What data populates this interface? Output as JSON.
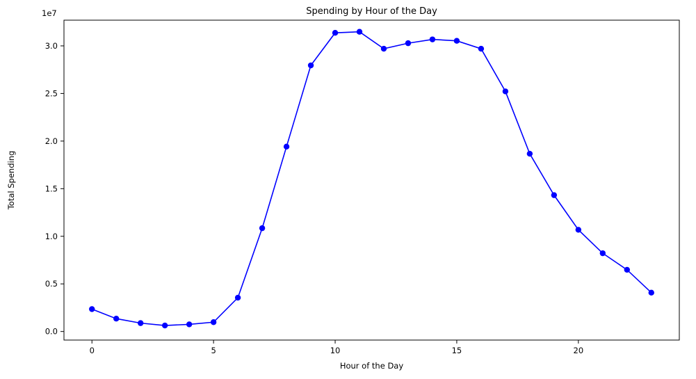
{
  "chart_data": {
    "type": "line",
    "title": "Spending by Hour of the Day",
    "xlabel": "Hour of the Day",
    "ylabel": "Total Spending",
    "y_offset_label": "1e7",
    "y_scale_factor": 10000000,
    "xlim": [
      -1.15,
      24.15
    ],
    "ylim": [
      -0.09,
      3.27
    ],
    "x_ticks": [
      0,
      5,
      10,
      15,
      20
    ],
    "y_ticks": [
      0.0,
      0.5,
      1.0,
      1.5,
      2.0,
      2.5,
      3.0
    ],
    "y_tick_labels": [
      "0.0",
      "0.5",
      "1.0",
      "1.5",
      "2.0",
      "2.5",
      "3.0"
    ],
    "grid": false,
    "series": [
      {
        "color": "#0000ff",
        "marker": "circle",
        "x": [
          0,
          1,
          2,
          3,
          4,
          5,
          6,
          7,
          8,
          9,
          10,
          11,
          12,
          13,
          14,
          15,
          16,
          17,
          18,
          19,
          20,
          21,
          22,
          23
        ],
        "values": [
          0.235,
          0.135,
          0.088,
          0.063,
          0.075,
          0.098,
          0.355,
          1.085,
          1.942,
          2.795,
          3.137,
          3.148,
          2.97,
          3.028,
          3.068,
          3.053,
          2.97,
          2.522,
          1.867,
          1.432,
          1.068,
          0.822,
          0.648,
          0.408
        ]
      }
    ]
  }
}
